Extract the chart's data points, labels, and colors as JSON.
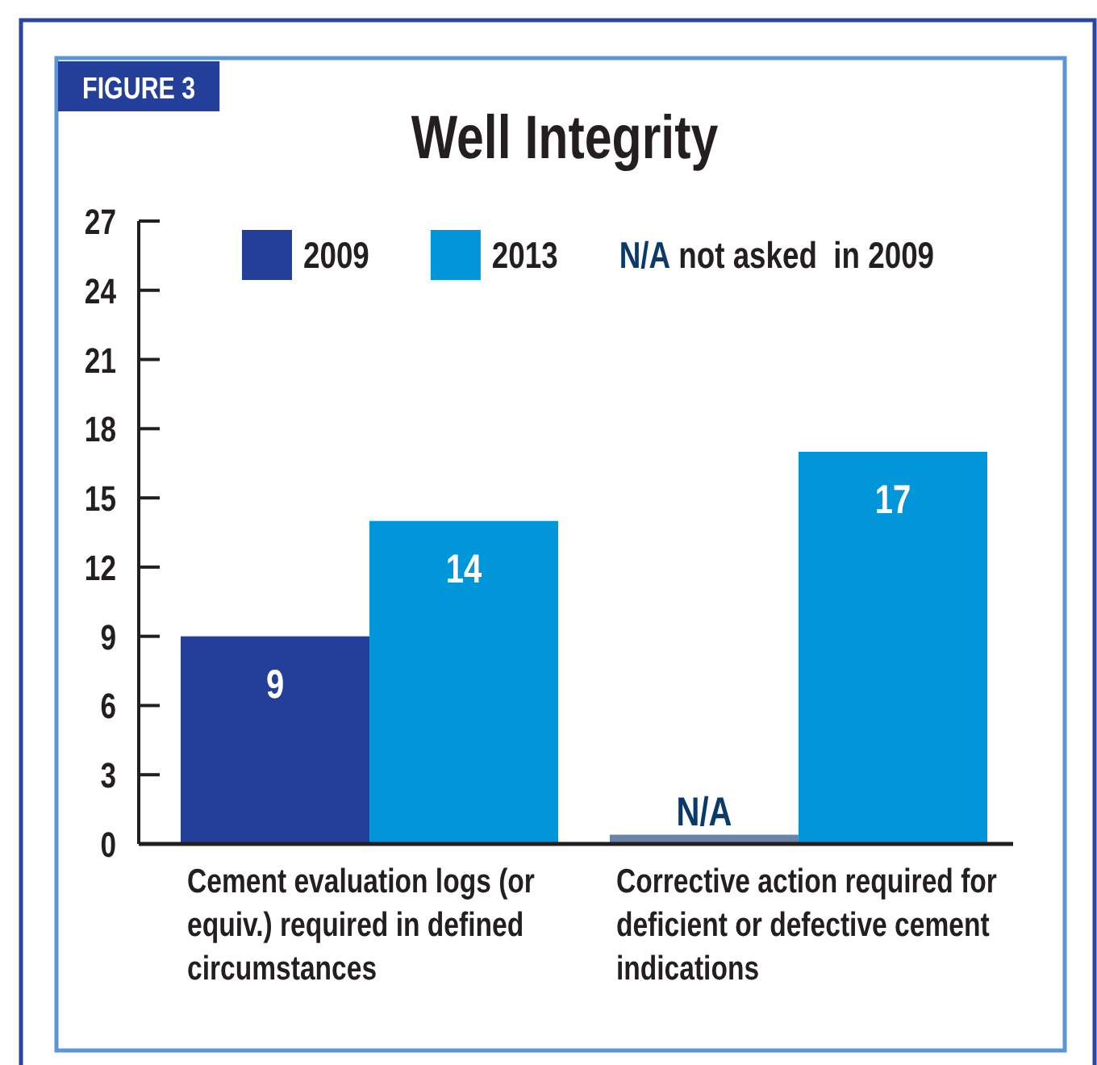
{
  "chart_data": {
    "type": "bar",
    "title": "Well Integrity",
    "categories": [
      "Cement evaluation logs (or equiv.) required in defined circumstances",
      "Corrective action required for deficient or defective cement indications"
    ],
    "series": [
      {
        "name": "2009",
        "color": "#233f99",
        "colors": [
          "#233f99",
          "#6a84a8"
        ],
        "values": [
          9,
          0.4
        ],
        "value_labels": [
          "9",
          "N/A"
        ]
      },
      {
        "name": "2013",
        "color": "#0096d9",
        "values": [
          14,
          17
        ],
        "value_labels": [
          "14",
          "17"
        ]
      }
    ],
    "ylim": [
      0,
      27
    ],
    "yticks": [
      0,
      3,
      6,
      9,
      12,
      15,
      18,
      21,
      24,
      27
    ],
    "legend": "top",
    "annotations": [
      "FIGURE 3",
      "N/A not asked  in 2009"
    ]
  }
}
